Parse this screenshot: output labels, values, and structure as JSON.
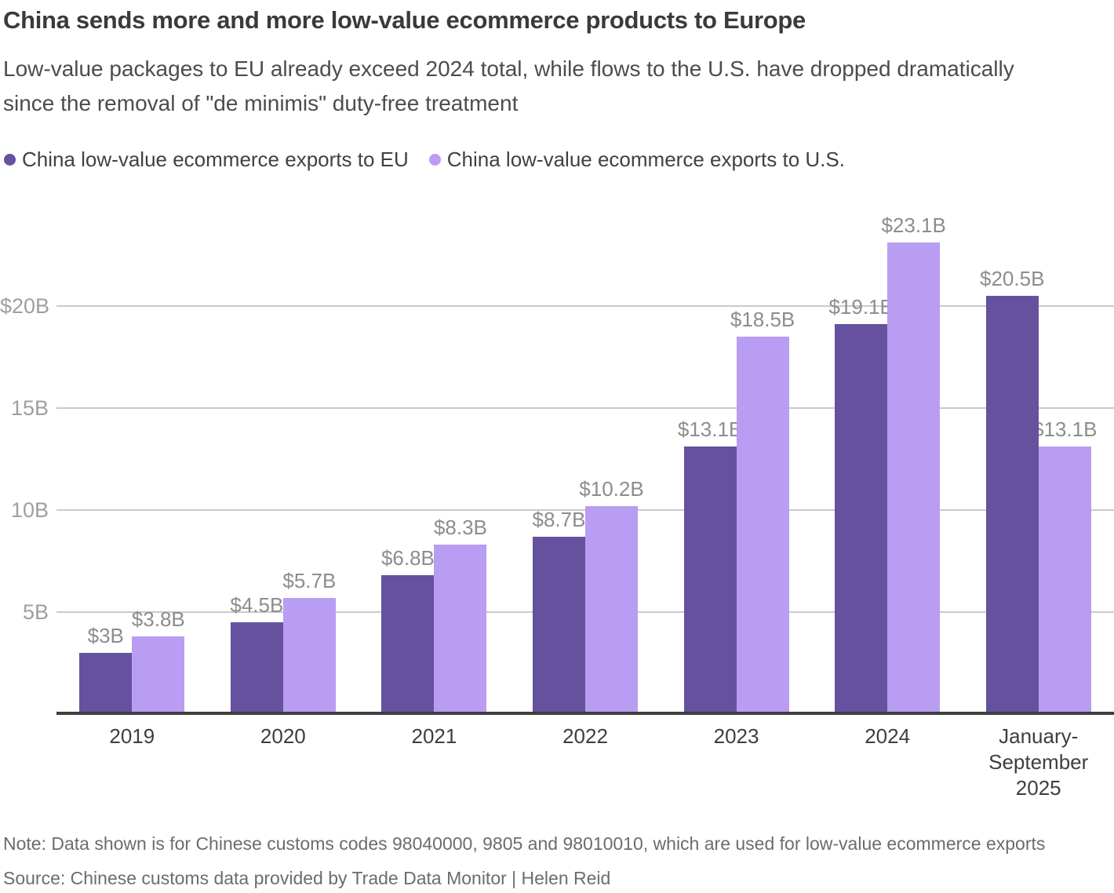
{
  "title": "China sends more and more low-value ecommerce products to Europe",
  "subtitle": "Low-value packages to EU already exceed 2024 total, while flows to the U.S. have dropped dramatically since the removal of \"de minimis\" duty-free treatment",
  "legend": [
    {
      "label": "China low-value ecommerce exports to EU",
      "color": "#66519e"
    },
    {
      "label": "China low-value ecommerce exports to U.S.",
      "color": "#b99df2"
    }
  ],
  "chart_data": {
    "type": "bar",
    "categories": [
      "2019",
      "2020",
      "2021",
      "2022",
      "2023",
      "2024",
      "January-\nSeptember\n2025"
    ],
    "series": [
      {
        "key": "eu",
        "name": "China low-value ecommerce exports to EU",
        "color": "#66519e",
        "values": [
          3,
          4.5,
          6.8,
          8.7,
          13.1,
          19.1,
          20.5
        ],
        "labels": [
          "$3B",
          "$4.5B",
          "$6.8B",
          "$8.7B",
          "$13.1B",
          "$19.1B",
          "$20.5B"
        ]
      },
      {
        "key": "us",
        "name": "China low-value ecommerce exports to U.S.",
        "color": "#b99df2",
        "values": [
          3.8,
          5.7,
          8.3,
          10.2,
          18.5,
          23.1,
          13.1
        ],
        "labels": [
          "$3.8B",
          "$5.7B",
          "$8.3B",
          "$10.2B",
          "$18.5B",
          "$23.1B",
          "$13.1B"
        ]
      }
    ],
    "y_ticks": [
      {
        "value": 5,
        "label": "5B"
      },
      {
        "value": 10,
        "label": "10B"
      },
      {
        "value": 15,
        "label": "15B"
      },
      {
        "value": 20,
        "label": "$20B"
      }
    ],
    "ylim": [
      0,
      25
    ],
    "grid": true,
    "legend_position": "top",
    "xlabel": "",
    "ylabel": ""
  },
  "note": "Note: Data shown is for Chinese customs codes 98040000, 9805 and 98010010, which are used for low-value ecommerce exports",
  "source": "Source: Chinese customs data provided by Trade Data Monitor | Helen Reid"
}
